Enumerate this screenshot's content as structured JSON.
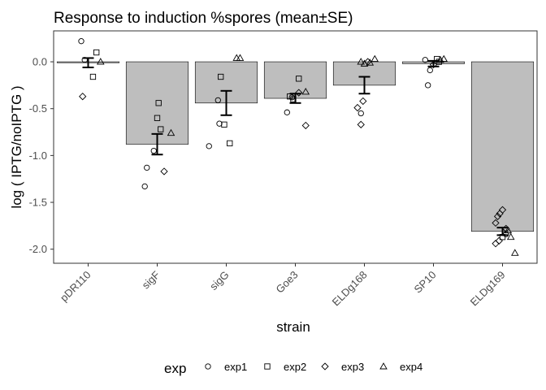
{
  "chart_data": {
    "type": "bar",
    "title": "Response to induction %spores (mean±SE)",
    "xlabel": "strain",
    "ylabel": "log ( IPTG/noIPTG )",
    "categories": [
      "pDR110",
      "sigF",
      "sigG",
      "Goe3",
      "ELDg168",
      "SP10",
      "ELDg169"
    ],
    "means": [
      -0.01,
      -0.88,
      -0.44,
      -0.39,
      -0.25,
      -0.02,
      -1.81
    ],
    "se": [
      0.05,
      0.11,
      0.13,
      0.05,
      0.09,
      0.03,
      0.04
    ],
    "ylim": [
      -2.15,
      0.33
    ],
    "yticks": [
      "0.0",
      "-0.5",
      "-1.0",
      "-1.5",
      "-2.0"
    ],
    "ytick_values": [
      0.0,
      -0.5,
      -1.0,
      -1.5,
      -2.0
    ],
    "bar_color": "#bebebe",
    "legend": {
      "title": "exp",
      "position": "bottom",
      "entries": [
        {
          "label": "exp1",
          "shape": "circle"
        },
        {
          "label": "exp2",
          "shape": "square"
        },
        {
          "label": "exp3",
          "shape": "diamond"
        },
        {
          "label": "exp4",
          "shape": "triangle"
        }
      ]
    },
    "points": {
      "exp1": [
        {
          "strain": "pDR110",
          "jitter": -0.1,
          "y": 0.22
        },
        {
          "strain": "pDR110",
          "jitter": -0.05,
          "y": 0.02
        },
        {
          "strain": "sigF",
          "jitter": -0.18,
          "y": -1.33
        },
        {
          "strain": "sigF",
          "jitter": -0.15,
          "y": -1.13
        },
        {
          "strain": "sigF",
          "jitter": -0.05,
          "y": -0.95
        },
        {
          "strain": "sigG",
          "jitter": -0.25,
          "y": -0.9
        },
        {
          "strain": "sigG",
          "jitter": -0.1,
          "y": -0.66
        },
        {
          "strain": "sigG",
          "jitter": -0.12,
          "y": -0.41
        },
        {
          "strain": "Goe3",
          "jitter": -0.12,
          "y": -0.54
        },
        {
          "strain": "Goe3",
          "jitter": -0.05,
          "y": -0.38
        },
        {
          "strain": "ELDg168",
          "jitter": -0.05,
          "y": -0.55
        },
        {
          "strain": "SP10",
          "jitter": -0.08,
          "y": -0.25
        },
        {
          "strain": "SP10",
          "jitter": -0.05,
          "y": -0.09
        },
        {
          "strain": "SP10",
          "jitter": -0.12,
          "y": 0.02
        },
        {
          "strain": "ELDg169",
          "jitter": 0.05,
          "y": -1.84
        }
      ],
      "exp2": [
        {
          "strain": "pDR110",
          "jitter": 0.12,
          "y": 0.1
        },
        {
          "strain": "pDR110",
          "jitter": 0.07,
          "y": -0.16
        },
        {
          "strain": "sigF",
          "jitter": 0.02,
          "y": -0.44
        },
        {
          "strain": "sigF",
          "jitter": 0.0,
          "y": -0.6
        },
        {
          "strain": "sigF",
          "jitter": 0.05,
          "y": -0.72
        },
        {
          "strain": "sigG",
          "jitter": -0.08,
          "y": -0.16
        },
        {
          "strain": "sigG",
          "jitter": 0.05,
          "y": -0.87
        },
        {
          "strain": "sigG",
          "jitter": -0.03,
          "y": -0.67
        },
        {
          "strain": "Goe3",
          "jitter": 0.05,
          "y": -0.18
        },
        {
          "strain": "Goe3",
          "jitter": -0.08,
          "y": -0.37
        },
        {
          "strain": "Goe3",
          "jitter": -0.03,
          "y": -0.4
        },
        {
          "strain": "SP10",
          "jitter": 0.05,
          "y": 0.03
        },
        {
          "strain": "SP10",
          "jitter": 0.08,
          "y": 0.0
        },
        {
          "strain": "ELDg169",
          "jitter": 0.0,
          "y": -1.87
        }
      ],
      "exp3": [
        {
          "strain": "pDR110",
          "jitter": -0.08,
          "y": -0.37
        },
        {
          "strain": "sigF",
          "jitter": 0.1,
          "y": -1.17
        },
        {
          "strain": "Goe3",
          "jitter": 0.05,
          "y": -0.33
        },
        {
          "strain": "Goe3",
          "jitter": 0.15,
          "y": -0.68
        },
        {
          "strain": "ELDg168",
          "jitter": -0.1,
          "y": -0.49
        },
        {
          "strain": "ELDg168",
          "jitter": -0.05,
          "y": -0.67
        },
        {
          "strain": "ELDg168",
          "jitter": -0.02,
          "y": -0.42
        },
        {
          "strain": "ELDg168",
          "jitter": 0.05,
          "y": 0.0
        },
        {
          "strain": "SP10",
          "jitter": 0.0,
          "y": -0.03
        },
        {
          "strain": "ELDg169",
          "jitter": -0.1,
          "y": -1.72
        },
        {
          "strain": "ELDg169",
          "jitter": -0.07,
          "y": -1.65
        },
        {
          "strain": "ELDg169",
          "jitter": -0.04,
          "y": -1.62
        },
        {
          "strain": "ELDg169",
          "jitter": 0.0,
          "y": -1.58
        },
        {
          "strain": "ELDg169",
          "jitter": -0.1,
          "y": -1.94
        },
        {
          "strain": "ELDg169",
          "jitter": -0.05,
          "y": -1.91
        },
        {
          "strain": "ELDg169",
          "jitter": 0.05,
          "y": -1.78
        }
      ],
      "exp4": [
        {
          "strain": "pDR110",
          "jitter": 0.18,
          "y": 0.0
        },
        {
          "strain": "sigF",
          "jitter": 0.2,
          "y": -0.76
        },
        {
          "strain": "sigG",
          "jitter": 0.15,
          "y": 0.04
        },
        {
          "strain": "sigG",
          "jitter": 0.2,
          "y": 0.04
        },
        {
          "strain": "Goe3",
          "jitter": 0.15,
          "y": -0.32
        },
        {
          "strain": "ELDg168",
          "jitter": -0.05,
          "y": 0.0
        },
        {
          "strain": "ELDg168",
          "jitter": 0.0,
          "y": -0.02
        },
        {
          "strain": "ELDg168",
          "jitter": 0.08,
          "y": -0.01
        },
        {
          "strain": "ELDg168",
          "jitter": 0.15,
          "y": 0.03
        },
        {
          "strain": "SP10",
          "jitter": 0.15,
          "y": 0.03
        },
        {
          "strain": "SP10",
          "jitter": 0.1,
          "y": 0.02
        },
        {
          "strain": "ELDg169",
          "jitter": 0.12,
          "y": -1.87
        },
        {
          "strain": "ELDg169",
          "jitter": 0.18,
          "y": -2.04
        },
        {
          "strain": "ELDg169",
          "jitter": 0.08,
          "y": -1.8
        }
      ]
    }
  }
}
